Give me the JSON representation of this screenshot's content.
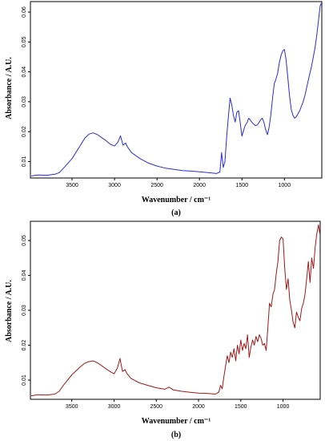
{
  "chart_data": [
    {
      "type": "line",
      "panel_label": "(a)",
      "xlabel": "Wavenumber / cm⁻¹",
      "ylabel": "Absorbance / A.U.",
      "xlim": [
        3990,
        560
      ],
      "ylim": [
        0.0045,
        0.0635
      ],
      "xticks": [
        3500,
        3000,
        2500,
        2000,
        1500,
        1000
      ],
      "yticks": [
        0.01,
        0.02,
        0.03,
        0.04,
        0.05,
        0.06
      ],
      "grid": false,
      "color": "#2b2bd4",
      "series": [
        {
          "x": [
            3980,
            3900,
            3800,
            3700,
            3650,
            3600,
            3500,
            3400,
            3350,
            3300,
            3250,
            3200,
            3150,
            3100,
            3050,
            3000,
            2960,
            2930,
            2900,
            2870,
            2850,
            2800,
            2700,
            2600,
            2500,
            2400,
            2300,
            2200,
            2100,
            2000,
            1900,
            1800,
            1760,
            1740,
            1720,
            1700,
            1680,
            1660,
            1640,
            1620,
            1600,
            1580,
            1560,
            1540,
            1520,
            1500,
            1480,
            1460,
            1440,
            1420,
            1400,
            1380,
            1360,
            1340,
            1320,
            1300,
            1280,
            1260,
            1240,
            1220,
            1200,
            1180,
            1160,
            1140,
            1120,
            1100,
            1080,
            1060,
            1040,
            1020,
            1000,
            980,
            960,
            940,
            920,
            900,
            880,
            860,
            840,
            820,
            800,
            780,
            760,
            740,
            720,
            700,
            680,
            660,
            640,
            620,
            600,
            580,
            565
          ],
          "y": [
            0.0052,
            0.0055,
            0.0054,
            0.0058,
            0.0063,
            0.0078,
            0.011,
            0.0155,
            0.0178,
            0.0192,
            0.0196,
            0.019,
            0.018,
            0.017,
            0.0158,
            0.0152,
            0.0165,
            0.0186,
            0.0155,
            0.0162,
            0.015,
            0.013,
            0.011,
            0.0095,
            0.0085,
            0.0078,
            0.0074,
            0.007,
            0.0068,
            0.0066,
            0.0063,
            0.006,
            0.0065,
            0.013,
            0.008,
            0.01,
            0.018,
            0.025,
            0.0312,
            0.029,
            0.0255,
            0.0232,
            0.0265,
            0.027,
            0.023,
            0.0185,
            0.0205,
            0.0222,
            0.023,
            0.0245,
            0.0238,
            0.023,
            0.0225,
            0.022,
            0.0222,
            0.023,
            0.024,
            0.0245,
            0.023,
            0.0205,
            0.019,
            0.0215,
            0.0255,
            0.031,
            0.036,
            0.0375,
            0.0395,
            0.043,
            0.0455,
            0.047,
            0.0475,
            0.044,
            0.038,
            0.032,
            0.0275,
            0.0255,
            0.0245,
            0.025,
            0.026,
            0.027,
            0.0285,
            0.03,
            0.032,
            0.0345,
            0.037,
            0.0395,
            0.042,
            0.045,
            0.048,
            0.052,
            0.057,
            0.062,
            0.063
          ]
        }
      ]
    },
    {
      "type": "line",
      "panel_label": "(b)",
      "xlabel": "Wavenumber / cm⁻¹",
      "ylabel": "Absorbance / A.U.",
      "xlim": [
        3990,
        560
      ],
      "ylim": [
        0.0045,
        0.0555
      ],
      "xticks": [
        3500,
        3000,
        2500,
        2000,
        1500,
        1000
      ],
      "yticks": [
        0.01,
        0.02,
        0.03,
        0.04,
        0.05
      ],
      "grid": false,
      "color": "#a01818",
      "series": [
        {
          "x": [
            3980,
            3900,
            3800,
            3700,
            3650,
            3600,
            3500,
            3400,
            3350,
            3300,
            3250,
            3200,
            3150,
            3100,
            3050,
            3000,
            2960,
            2930,
            2900,
            2870,
            2850,
            2800,
            2700,
            2600,
            2500,
            2400,
            2350,
            2300,
            2200,
            2100,
            2000,
            1900,
            1800,
            1760,
            1740,
            1720,
            1700,
            1680,
            1660,
            1640,
            1620,
            1600,
            1580,
            1560,
            1540,
            1520,
            1500,
            1480,
            1460,
            1440,
            1420,
            1400,
            1380,
            1360,
            1340,
            1320,
            1300,
            1280,
            1260,
            1240,
            1220,
            1200,
            1180,
            1160,
            1140,
            1120,
            1100,
            1080,
            1060,
            1040,
            1020,
            1000,
            980,
            960,
            940,
            920,
            900,
            880,
            860,
            840,
            820,
            800,
            780,
            760,
            740,
            720,
            700,
            680,
            660,
            640,
            620,
            600,
            580,
            565
          ],
          "y": [
            0.0055,
            0.0058,
            0.0057,
            0.006,
            0.0068,
            0.0085,
            0.0115,
            0.0138,
            0.0148,
            0.0153,
            0.0155,
            0.015,
            0.0142,
            0.0133,
            0.0125,
            0.0118,
            0.0135,
            0.0162,
            0.0125,
            0.013,
            0.012,
            0.0105,
            0.0092,
            0.0085,
            0.0078,
            0.0074,
            0.008,
            0.0072,
            0.0068,
            0.0065,
            0.0063,
            0.0062,
            0.006,
            0.0066,
            0.0085,
            0.0075,
            0.011,
            0.014,
            0.017,
            0.015,
            0.018,
            0.0165,
            0.019,
            0.0155,
            0.02,
            0.0175,
            0.0215,
            0.0185,
            0.0205,
            0.019,
            0.023,
            0.0165,
            0.0195,
            0.0215,
            0.02,
            0.0225,
            0.021,
            0.023,
            0.022,
            0.02,
            0.0205,
            0.0185,
            0.025,
            0.032,
            0.031,
            0.0345,
            0.036,
            0.0405,
            0.044,
            0.05,
            0.051,
            0.0505,
            0.042,
            0.036,
            0.039,
            0.033,
            0.03,
            0.0265,
            0.025,
            0.0295,
            0.028,
            0.027,
            0.0305,
            0.032,
            0.0345,
            0.039,
            0.044,
            0.038,
            0.045,
            0.042,
            0.048,
            0.052,
            0.0545,
            0.052
          ]
        }
      ]
    }
  ]
}
